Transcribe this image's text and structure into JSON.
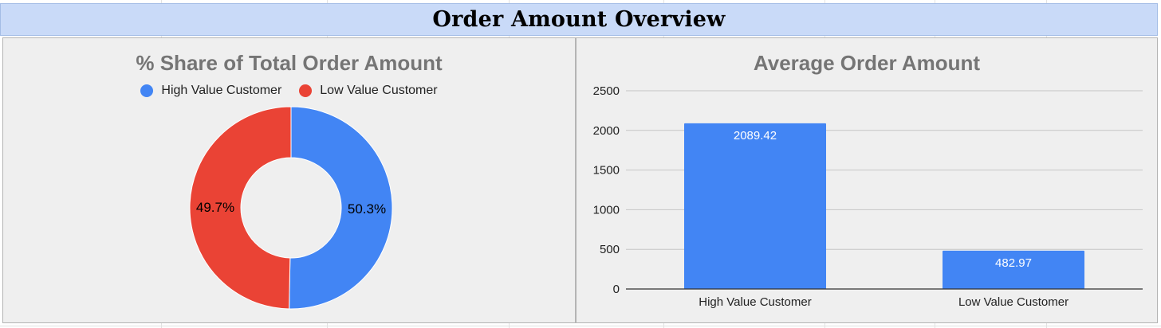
{
  "header": {
    "title": "Order Amount Overview"
  },
  "colors": {
    "high_value": "#4285f4",
    "low_value": "#ea4335",
    "header_band": "#c9daf8"
  },
  "chart_data": [
    {
      "type": "pie",
      "variant": "donut",
      "title": "% Share of Total Order Amount",
      "legend": [
        "High Value Customer",
        "Low Value Customer"
      ],
      "legend_position": "top",
      "slices": [
        {
          "name": "High Value Customer",
          "value": 50.3,
          "label": "50.3%"
        },
        {
          "name": "Low Value Customer",
          "value": 49.7,
          "label": "49.7%"
        }
      ]
    },
    {
      "type": "bar",
      "title": "Average Order Amount",
      "categories": [
        "High Value Customer",
        "Low Value Customer"
      ],
      "values": [
        2089.42,
        482.97
      ],
      "value_labels": [
        "2089.42",
        "482.97"
      ],
      "ylim": [
        0,
        2500
      ],
      "yticks": [
        "2500",
        "2000",
        "1500",
        "1000",
        "500",
        "0"
      ],
      "grid": true,
      "xlabel": "",
      "ylabel": ""
    }
  ]
}
